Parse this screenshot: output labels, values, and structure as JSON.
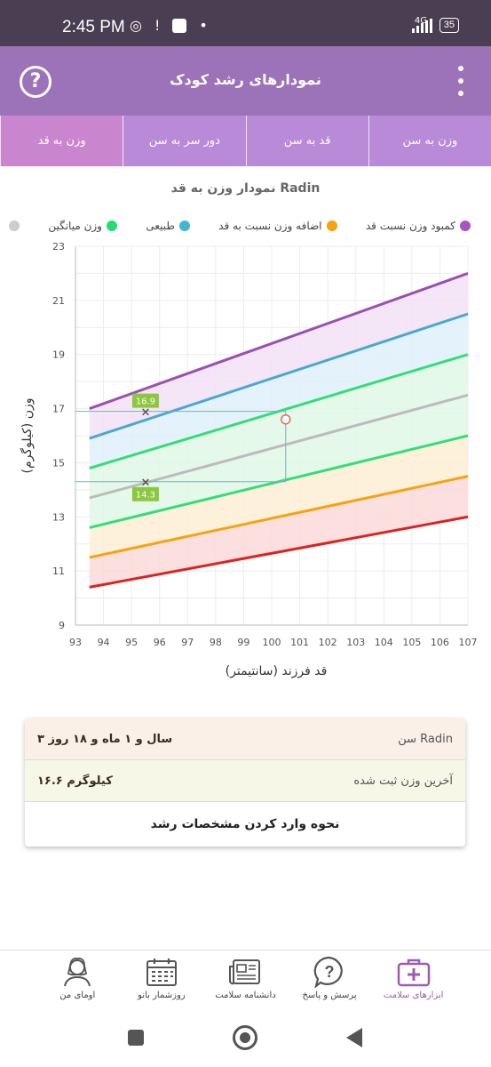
{
  "status_bar": {
    "time": "2:45 PM",
    "net": "4G",
    "battery": "35"
  },
  "app_bar": {
    "title": "نمودارهای رشد کودک",
    "help": "?"
  },
  "tabs": [
    {
      "label": "وزن به سن",
      "active": false
    },
    {
      "label": "قد به سن",
      "active": false
    },
    {
      "label": "دور سر به سن",
      "active": false
    },
    {
      "label": "وزن به قد",
      "active": true
    }
  ],
  "chart_title": "نمودار وزن به قد Radin",
  "legend": [
    {
      "label": "کمبود وزن نسبت قد",
      "color": "#a855c0"
    },
    {
      "label": "اضافه وزن نسبت به قد",
      "color": "#f5a30e"
    },
    {
      "label": "طبیعی",
      "color": "#42b5d0"
    },
    {
      "label": "وزن میانگین",
      "color": "#22dd77"
    },
    {
      "label": "",
      "color": "#cccccc"
    }
  ],
  "chart_data": {
    "type": "line",
    "xlabel": "قد فرزند (سانتیمتر)",
    "ylabel": "وزن (کیلوگرم)",
    "xlim": [
      93,
      107
    ],
    "ylim": [
      9,
      23
    ],
    "x_ticks": [
      93,
      94,
      95,
      96,
      97,
      98,
      99,
      100,
      101,
      102,
      103,
      104,
      105,
      106,
      107
    ],
    "y_ticks": [
      9,
      11,
      13,
      15,
      17,
      19,
      21,
      23
    ],
    "x_start": 93.5,
    "x_end": 107,
    "series": [
      {
        "color": "#9b4fb0",
        "fill": "#f2e2f6",
        "values": [
          17.0,
          22.0
        ]
      },
      {
        "color": "#4aa8cc",
        "fill": "#dff0fa",
        "values": [
          15.9,
          20.5
        ]
      },
      {
        "color": "#33dd77",
        "fill": "#e0f8e6",
        "values": [
          14.8,
          19.0
        ]
      },
      {
        "color": "#bbbbbb",
        "fill": "#e0f8e6",
        "values": [
          13.7,
          17.5
        ]
      },
      {
        "color": "#33dd77",
        "fill": "#fdefd6",
        "values": [
          12.6,
          16.0
        ]
      },
      {
        "color": "#f5a30e",
        "fill": "#fcd9d9",
        "values": [
          11.5,
          14.5
        ]
      },
      {
        "color": "#dd2222",
        "fill": "#fcd9d9",
        "values": [
          10.4,
          13.0
        ]
      }
    ],
    "markers": [
      {
        "x": 95.5,
        "y": 16.9,
        "label": "16.9"
      },
      {
        "x": 95.5,
        "y": 14.3,
        "label": "14.3"
      }
    ],
    "child_point": {
      "x": 100.5,
      "y": 16.6
    }
  },
  "info": {
    "age_label": "سن Radin",
    "age_value": "۳ سال و ۱ ماه و ۱۸ روز",
    "weight_label": "آخرین وزن ثبت شده",
    "weight_value": "۱۶.۶ کیلوگرم",
    "link": "نحوه وارد کردن مشخصات رشد"
  },
  "bottom_nav": [
    {
      "label": "ابزارهای سلامت",
      "icon": "medical-kit-icon",
      "active": true
    },
    {
      "label": "پرسش و پاسخ",
      "icon": "question-bubble-icon",
      "active": false
    },
    {
      "label": "دانشنامه سلامت",
      "icon": "newspaper-icon",
      "active": false
    },
    {
      "label": "روزشمار بانو",
      "icon": "calendar-icon",
      "active": false
    },
    {
      "label": "اومای من",
      "icon": "profile-icon",
      "active": false
    }
  ]
}
